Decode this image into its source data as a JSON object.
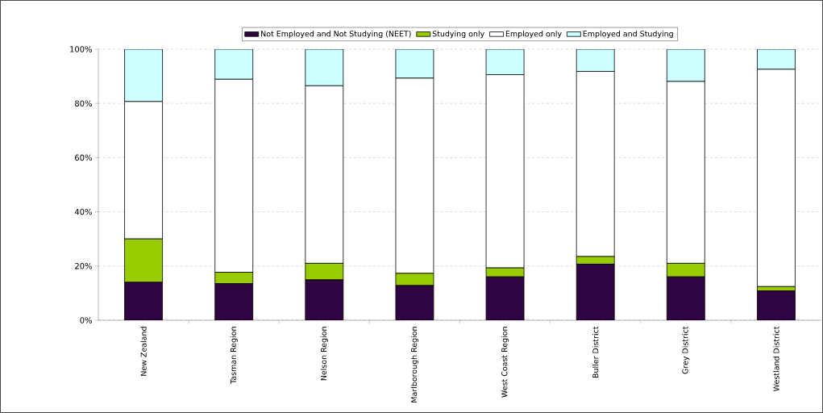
{
  "chart_data": {
    "type": "bar",
    "stacked": true,
    "categories": [
      "New Zealand",
      "Tasman Region",
      "Nelson Region",
      "Marlborough Region",
      "West Coast Region",
      "Buller District",
      "Grey District",
      "Westland District"
    ],
    "series": [
      {
        "name": "Not Employed and Not Studying (NEET)",
        "color": "#2e0541",
        "values": [
          14.0,
          13.5,
          14.9,
          12.8,
          16.0,
          20.7,
          16.0,
          10.8
        ]
      },
      {
        "name": "Studying only",
        "color": "#99cc00",
        "values": [
          16.0,
          4.2,
          6.1,
          4.5,
          3.3,
          2.8,
          5.0,
          1.6
        ]
      },
      {
        "name": "Employed only",
        "color": "#ffffff",
        "values": [
          50.7,
          71.2,
          65.5,
          72.0,
          71.3,
          68.3,
          67.1,
          80.2
        ]
      },
      {
        "name": "Employed and Studying",
        "color": "#ccffff",
        "values": [
          19.3,
          11.1,
          13.5,
          10.7,
          9.4,
          8.2,
          11.9,
          7.4
        ]
      }
    ],
    "ylim": [
      0,
      100
    ],
    "yticks": [
      {
        "value": 0,
        "label": "0%"
      },
      {
        "value": 20,
        "label": "20%"
      },
      {
        "value": 40,
        "label": "40%"
      },
      {
        "value": 60,
        "label": "60%"
      },
      {
        "value": 80,
        "label": "80%"
      },
      {
        "value": 100,
        "label": "100%"
      }
    ],
    "grid": "y",
    "legend": "top"
  }
}
